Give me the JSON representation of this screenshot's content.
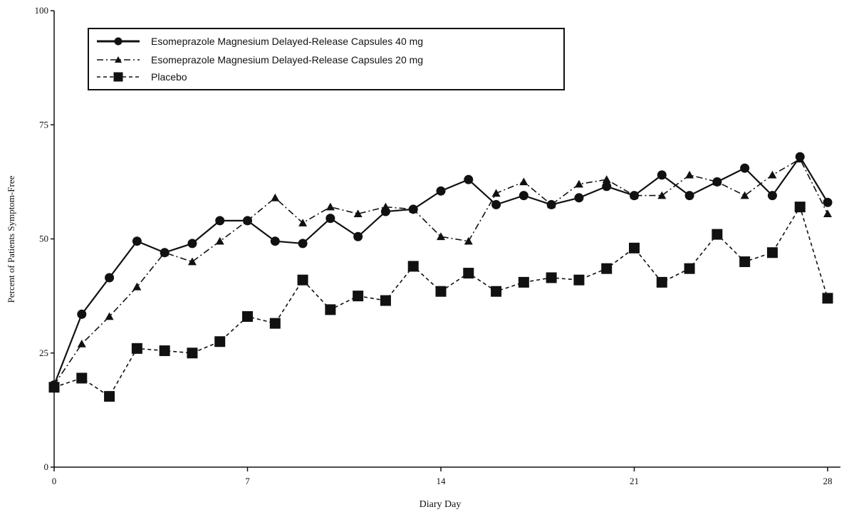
{
  "chart_data": {
    "type": "line",
    "title": "",
    "xlabel": "Diary Day",
    "ylabel": "Percent of Patients Symptom-Free",
    "xlim": [
      0,
      28
    ],
    "ylim": [
      0,
      100
    ],
    "x_ticks": [
      0,
      7,
      14,
      21,
      28
    ],
    "y_ticks": [
      0,
      25,
      50,
      75,
      100
    ],
    "grid": false,
    "legend_position": "top-left",
    "x": [
      0,
      1,
      2,
      3,
      4,
      5,
      6,
      7,
      8,
      9,
      10,
      11,
      12,
      13,
      14,
      15,
      16,
      17,
      18,
      19,
      20,
      21,
      22,
      23,
      24,
      25,
      26,
      27,
      28
    ],
    "series": [
      {
        "name": "Esomeprazole Magnesium Delayed-Release Capsules 40 mg",
        "marker": "circle",
        "line_style": "solid",
        "color": "#111111",
        "values": [
          18,
          33.5,
          41.5,
          49.5,
          47,
          49,
          54,
          54,
          49.5,
          49,
          54.5,
          50.5,
          56,
          56.5,
          60.5,
          63,
          57.5,
          59.5,
          57.5,
          59,
          61.5,
          59.5,
          64,
          59.5,
          62.5,
          65.5,
          59.5,
          68,
          58
        ]
      },
      {
        "name": "Esomeprazole Magnesium Delayed-Release Capsules 20 mg",
        "marker": "triangle",
        "line_style": "dash-dot",
        "color": "#111111",
        "values": [
          18,
          27,
          33,
          39.5,
          47,
          45,
          49.5,
          54,
          59,
          53.5,
          57,
          55.5,
          57,
          56.5,
          50.5,
          49.5,
          60,
          62.5,
          57.5,
          62,
          63,
          59.5,
          59.5,
          64,
          62.5,
          59.5,
          64,
          67.5,
          55.5
        ]
      },
      {
        "name": "Placebo",
        "marker": "square",
        "line_style": "dashed",
        "color": "#111111",
        "values": [
          17.5,
          19.5,
          15.5,
          26,
          25.5,
          25,
          27.5,
          33,
          31.5,
          41,
          34.5,
          37.5,
          36.5,
          44,
          38.5,
          42.5,
          38.5,
          40.5,
          41.5,
          41,
          43.5,
          48,
          40.5,
          43.5,
          51,
          45,
          47,
          57,
          37
        ]
      }
    ]
  }
}
